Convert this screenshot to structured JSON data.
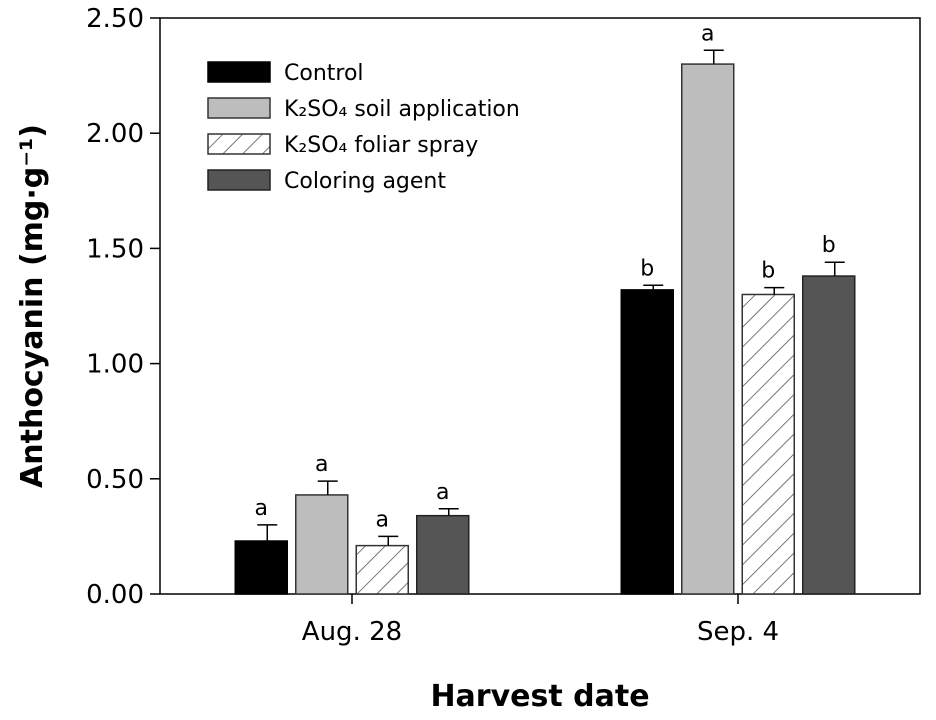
{
  "chart_data": {
    "type": "bar",
    "title": "",
    "xlabel": "Harvest date",
    "ylabel": "Anthocyanin (mg·g⁻¹)",
    "ylim": [
      0,
      2.5
    ],
    "yticks": [
      "0.00",
      "0.50",
      "1.00",
      "1.50",
      "2.00",
      "2.50"
    ],
    "categories": [
      "Aug. 28",
      "Sep. 4"
    ],
    "legend_position": "top-left",
    "series": [
      {
        "name": "Control",
        "legend_main": "Control",
        "legend_suffix": "",
        "style": "black",
        "values": [
          0.23,
          1.32
        ],
        "errors": [
          0.07,
          0.02
        ],
        "labels": [
          "a",
          "b"
        ]
      },
      {
        "name": "K₂SO₄ soil application",
        "legend_main": "K₂SO₄",
        "legend_suffix": " soil application",
        "style": "light-gray",
        "values": [
          0.43,
          2.3
        ],
        "errors": [
          0.06,
          0.06
        ],
        "labels": [
          "a",
          "a"
        ]
      },
      {
        "name": "K₂SO₄ foliar spray",
        "legend_main": "K₂SO₄",
        "legend_suffix": " foliar spray",
        "style": "hatched",
        "values": [
          0.21,
          1.3
        ],
        "errors": [
          0.04,
          0.03
        ],
        "labels": [
          "a",
          "b"
        ]
      },
      {
        "name": "Coloring agent",
        "legend_main": "Coloring agent",
        "legend_suffix": "",
        "style": "dark-gray",
        "values": [
          0.34,
          1.38
        ],
        "errors": [
          0.03,
          0.06
        ],
        "labels": [
          "a",
          "b"
        ]
      }
    ]
  }
}
